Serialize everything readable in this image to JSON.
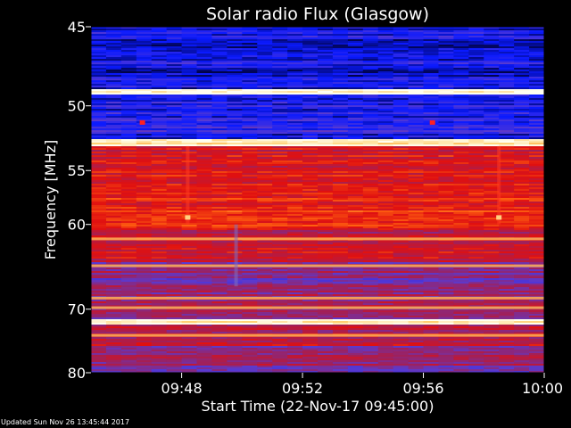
{
  "chart_data": {
    "type": "heatmap",
    "title": "Solar radio Flux (Glasgow)",
    "xlabel": "Start Time (22-Nov-17 09:45:00)",
    "ylabel": "Frequency [MHz]",
    "x_range_minutes": [
      0,
      15
    ],
    "x_ticks": [
      {
        "minute": 3,
        "label": "09:48"
      },
      {
        "minute": 7,
        "label": "09:52"
      },
      {
        "minute": 11,
        "label": "09:56"
      },
      {
        "minute": 15,
        "label": "10:00"
      }
    ],
    "y_range_mhz": [
      45,
      80
    ],
    "y_scale": "reciprocal",
    "y_ticks": [
      {
        "mhz": 45,
        "label": "45"
      },
      {
        "mhz": 50,
        "label": "50"
      },
      {
        "mhz": 55,
        "label": "55"
      },
      {
        "mhz": 60,
        "label": "60"
      },
      {
        "mhz": 70,
        "label": "70"
      },
      {
        "mhz": 80,
        "label": "80"
      }
    ],
    "colormap": [
      "#000030",
      "#0a1aff",
      "#5a3ad0",
      "#a0205a",
      "#e01010",
      "#ff6010",
      "#ffd070",
      "#fffff0"
    ],
    "frequency_bands": [
      {
        "from_mhz": 45.0,
        "to_mhz": 48.8,
        "level": 0.15
      },
      {
        "from_mhz": 48.8,
        "to_mhz": 49.2,
        "level": 1.0
      },
      {
        "from_mhz": 49.2,
        "to_mhz": 52.5,
        "level": 0.18
      },
      {
        "from_mhz": 52.5,
        "to_mhz": 53.0,
        "level": 0.95
      },
      {
        "from_mhz": 53.0,
        "to_mhz": 57.0,
        "level": 0.55
      },
      {
        "from_mhz": 57.0,
        "to_mhz": 60.5,
        "level": 0.62
      },
      {
        "from_mhz": 60.5,
        "to_mhz": 64.0,
        "level": 0.5
      },
      {
        "from_mhz": 64.0,
        "to_mhz": 68.0,
        "level": 0.38
      },
      {
        "from_mhz": 68.0,
        "to_mhz": 71.5,
        "level": 0.42
      },
      {
        "from_mhz": 71.5,
        "to_mhz": 72.3,
        "level": 0.97
      },
      {
        "from_mhz": 72.3,
        "to_mhz": 75.5,
        "level": 0.5
      },
      {
        "from_mhz": 75.5,
        "to_mhz": 80.0,
        "level": 0.4
      }
    ],
    "interference_lines_mhz": [
      61.5,
      64.5,
      68.5,
      69.8,
      73.8
    ],
    "bright_spots": [
      {
        "minute": 3.2,
        "mhz": 59.3
      },
      {
        "minute": 13.5,
        "mhz": 59.3
      },
      {
        "minute": 1.7,
        "mhz": 51.2
      },
      {
        "minute": 11.3,
        "mhz": 51.2
      }
    ],
    "vertical_streaks_minutes": [
      3.2,
      13.5,
      4.8
    ]
  },
  "footer": {
    "updated": "Updated Sun Nov 26 13:45:44 2017"
  }
}
